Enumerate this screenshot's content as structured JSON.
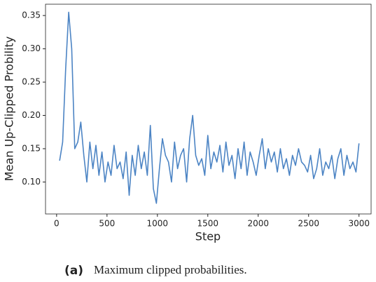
{
  "chart_data": {
    "type": "line",
    "xlabel": "Step",
    "ylabel": "Mean Up-Clipped Probility",
    "caption": {
      "label": "(a)",
      "text": "Maximum clipped probabilities."
    },
    "color": "#4c84c4",
    "x": [
      30,
      60,
      90,
      120,
      150,
      180,
      210,
      240,
      270,
      300,
      330,
      360,
      390,
      420,
      450,
      480,
      510,
      540,
      570,
      600,
      630,
      660,
      690,
      720,
      750,
      780,
      810,
      840,
      870,
      900,
      930,
      960,
      990,
      1020,
      1050,
      1080,
      1110,
      1140,
      1170,
      1200,
      1230,
      1260,
      1290,
      1320,
      1350,
      1380,
      1410,
      1440,
      1470,
      1500,
      1530,
      1560,
      1590,
      1620,
      1650,
      1680,
      1710,
      1740,
      1770,
      1800,
      1830,
      1860,
      1890,
      1920,
      1950,
      1980,
      2010,
      2040,
      2070,
      2100,
      2130,
      2160,
      2190,
      2220,
      2250,
      2280,
      2310,
      2340,
      2370,
      2400,
      2430,
      2460,
      2490,
      2520,
      2550,
      2580,
      2610,
      2640,
      2670,
      2700,
      2730,
      2760,
      2790,
      2820,
      2850,
      2880,
      2910,
      2940,
      2970,
      3000
    ],
    "values": [
      0.132,
      0.16,
      0.27,
      0.355,
      0.3,
      0.15,
      0.16,
      0.19,
      0.14,
      0.1,
      0.16,
      0.12,
      0.155,
      0.11,
      0.145,
      0.1,
      0.13,
      0.11,
      0.155,
      0.12,
      0.13,
      0.105,
      0.145,
      0.08,
      0.14,
      0.11,
      0.155,
      0.12,
      0.145,
      0.11,
      0.185,
      0.09,
      0.068,
      0.12,
      0.165,
      0.14,
      0.13,
      0.1,
      0.16,
      0.12,
      0.14,
      0.15,
      0.1,
      0.165,
      0.2,
      0.14,
      0.125,
      0.135,
      0.11,
      0.17,
      0.12,
      0.145,
      0.13,
      0.155,
      0.115,
      0.16,
      0.125,
      0.14,
      0.105,
      0.15,
      0.12,
      0.16,
      0.11,
      0.145,
      0.13,
      0.11,
      0.14,
      0.165,
      0.12,
      0.15,
      0.13,
      0.145,
      0.115,
      0.15,
      0.12,
      0.135,
      0.11,
      0.14,
      0.125,
      0.15,
      0.13,
      0.125,
      0.115,
      0.14,
      0.105,
      0.12,
      0.15,
      0.11,
      0.13,
      0.12,
      0.14,
      0.105,
      0.135,
      0.15,
      0.11,
      0.14,
      0.12,
      0.13,
      0.115,
      0.158
    ],
    "xlim": [
      -110,
      3120
    ],
    "ylim": [
      0.052,
      0.367
    ],
    "xticks": [
      0,
      500,
      1000,
      1500,
      2000,
      2500,
      3000
    ],
    "yticks": [
      {
        "value": 0.1,
        "label": "0.10"
      },
      0.15,
      {
        "value": 0.2,
        "label": "0.20"
      },
      0.25,
      {
        "value": 0.3,
        "label": "0.30"
      },
      0.35
    ]
  }
}
